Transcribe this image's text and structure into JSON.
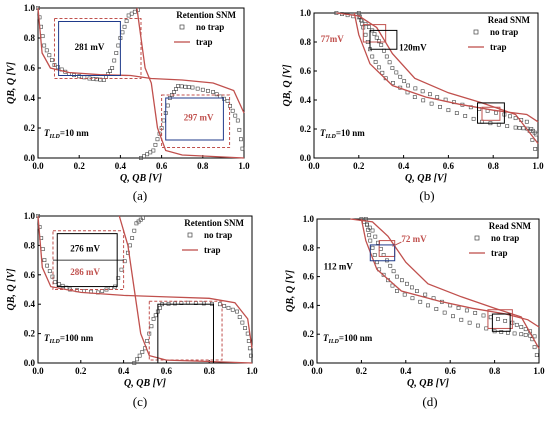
{
  "colors": {
    "trap": "#c0504d",
    "no_trap": "#000000",
    "box_trap": "#c0504d",
    "box_notrap": "#1f3a8a"
  },
  "chart_data": [
    {
      "type": "line",
      "panel": "(a)",
      "title": "Retention SNM",
      "xlabel": "Q, QB [V]",
      "ylabel": "QB, Q [V]",
      "xlim": [
        0,
        1.0
      ],
      "ylim": [
        0,
        1.0
      ],
      "xticks": [
        "0.0",
        "0.2",
        "0.4",
        "0.6",
        "0.8",
        "1.0"
      ],
      "yticks": [
        "0.0",
        "0.2",
        "0.4",
        "0.6",
        "0.8",
        "1.0"
      ],
      "legend": [
        "no trap",
        "trap"
      ],
      "condition": "=10 nm",
      "t_label_main": "T",
      "t_label_sub": "ILD",
      "snm_labels": [
        {
          "text": "281 mV",
          "color": "no_trap"
        },
        {
          "text": "297 mV",
          "color": "trap"
        }
      ],
      "series": [
        {
          "name": "no trap",
          "marker": "square",
          "curve1": [
            [
              0,
              1.0
            ],
            [
              0.03,
              0.75
            ],
            [
              0.08,
              0.62
            ],
            [
              0.15,
              0.56
            ],
            [
              0.25,
              0.53
            ],
            [
              0.32,
              0.52
            ],
            [
              0.36,
              0.6
            ],
            [
              0.4,
              0.8
            ],
            [
              0.44,
              0.95
            ],
            [
              0.5,
              1.0
            ]
          ],
          "curve2": [
            [
              0.5,
              0
            ],
            [
              0.56,
              0.05
            ],
            [
              0.6,
              0.2
            ],
            [
              0.64,
              0.4
            ],
            [
              0.68,
              0.48
            ],
            [
              0.75,
              0.47
            ],
            [
              0.85,
              0.44
            ],
            [
              0.92,
              0.38
            ],
            [
              0.97,
              0.25
            ],
            [
              1.0,
              0
            ]
          ]
        },
        {
          "name": "trap",
          "marker": "line",
          "curve1": [
            [
              0,
              1.0
            ],
            [
              0.02,
              0.7
            ],
            [
              0.06,
              0.6
            ],
            [
              0.15,
              0.57
            ],
            [
              0.3,
              0.555
            ],
            [
              0.45,
              0.55
            ],
            [
              0.5,
              0.54
            ],
            [
              0.55,
              0.53
            ],
            [
              0.7,
              0.52
            ],
            [
              0.85,
              0.5
            ],
            [
              0.95,
              0.45
            ],
            [
              1.0,
              0.3
            ]
          ],
          "curve2": [
            [
              0.48,
              1.0
            ],
            [
              0.5,
              0.8
            ],
            [
              0.52,
              0.6
            ],
            [
              0.55,
              0.5
            ],
            [
              0.58,
              0.2
            ],
            [
              0.62,
              0.05
            ],
            [
              0.7,
              0.02
            ],
            [
              0.85,
              0.01
            ],
            [
              1.0,
              0
            ]
          ]
        }
      ]
    },
    {
      "type": "line",
      "panel": "(b)",
      "title": "Read SNM",
      "xlabel": "Q, QB [V]",
      "ylabel": "QB, Q [V]",
      "xlim": [
        0,
        1.0
      ],
      "ylim": [
        0,
        1.0
      ],
      "xticks": [
        "0.0",
        "0.2",
        "0.4",
        "0.6",
        "0.8",
        "1.0"
      ],
      "yticks": [
        "0.0",
        "0.2",
        "0.4",
        "0.6",
        "0.8",
        "1.0"
      ],
      "legend": [
        "no trap",
        "trap"
      ],
      "condition": "=10 nm",
      "t_label_main": "T",
      "t_label_sub": "ILD",
      "snm_labels": [
        {
          "text": "77mV",
          "color": "trap"
        },
        {
          "text": "120mV",
          "color": "no_trap"
        }
      ],
      "series": [
        {
          "name": "no trap",
          "marker": "square",
          "curve1": [
            [
              0.1,
              1.0
            ],
            [
              0.2,
              0.97
            ],
            [
              0.26,
              0.88
            ],
            [
              0.3,
              0.78
            ],
            [
              0.35,
              0.62
            ],
            [
              0.42,
              0.5
            ],
            [
              0.55,
              0.42
            ],
            [
              0.7,
              0.35
            ],
            [
              0.85,
              0.3
            ],
            [
              0.95,
              0.25
            ],
            [
              1.0,
              0
            ]
          ],
          "curve2": [
            [
              0.2,
              1.0
            ],
            [
              0.22,
              0.9
            ],
            [
              0.26,
              0.7
            ],
            [
              0.32,
              0.55
            ],
            [
              0.45,
              0.42
            ],
            [
              0.6,
              0.33
            ],
            [
              0.75,
              0.25
            ],
            [
              0.9,
              0.21
            ],
            [
              0.97,
              0.2
            ],
            [
              1.0,
              0.15
            ]
          ]
        },
        {
          "name": "trap",
          "marker": "line",
          "curve1": [
            [
              0.1,
              1.0
            ],
            [
              0.2,
              0.98
            ],
            [
              0.28,
              0.9
            ],
            [
              0.35,
              0.72
            ],
            [
              0.45,
              0.55
            ],
            [
              0.6,
              0.45
            ],
            [
              0.75,
              0.38
            ],
            [
              0.9,
              0.3
            ],
            [
              1.0,
              0.1
            ]
          ],
          "curve2": [
            [
              0.18,
              1.0
            ],
            [
              0.2,
              0.85
            ],
            [
              0.25,
              0.65
            ],
            [
              0.35,
              0.5
            ],
            [
              0.5,
              0.42
            ],
            [
              0.65,
              0.37
            ],
            [
              0.8,
              0.33
            ],
            [
              0.95,
              0.3
            ],
            [
              1.0,
              0.25
            ]
          ]
        }
      ]
    },
    {
      "type": "line",
      "panel": "(c)",
      "title": "Retention SNM",
      "xlabel": "Q, QB [V]",
      "ylabel": "QB, Q [V]",
      "xlim": [
        0,
        1.0
      ],
      "ylim": [
        0,
        1.0
      ],
      "xticks": [
        "0.0",
        "0.2",
        "0.4",
        "0.6",
        "0.8",
        "1.0"
      ],
      "yticks": [
        "0.0",
        "0.2",
        "0.4",
        "0.6",
        "0.8",
        "1.0"
      ],
      "legend": [
        "no trap",
        "trap"
      ],
      "condition": "=100 nm",
      "t_label_main": "T",
      "t_label_sub": "ILD",
      "snm_labels": [
        {
          "text": "276 mV",
          "color": "no_trap"
        },
        {
          "text": "286 mV",
          "color": "trap"
        }
      ],
      "series": [
        {
          "name": "no trap",
          "marker": "square",
          "curve1": [
            [
              0,
              1.0
            ],
            [
              0.03,
              0.7
            ],
            [
              0.08,
              0.55
            ],
            [
              0.15,
              0.5
            ],
            [
              0.28,
              0.48
            ],
            [
              0.36,
              0.52
            ],
            [
              0.42,
              0.75
            ],
            [
              0.46,
              0.95
            ],
            [
              0.5,
              1.0
            ]
          ],
          "curve2": [
            [
              0.45,
              0
            ],
            [
              0.5,
              0.1
            ],
            [
              0.54,
              0.3
            ],
            [
              0.58,
              0.4
            ],
            [
              0.7,
              0.41
            ],
            [
              0.85,
              0.4
            ],
            [
              0.93,
              0.35
            ],
            [
              0.98,
              0.2
            ],
            [
              1.0,
              0
            ]
          ]
        },
        {
          "name": "trap",
          "marker": "line",
          "curve1": [
            [
              0,
              1.0
            ],
            [
              0.02,
              0.65
            ],
            [
              0.06,
              0.52
            ],
            [
              0.2,
              0.48
            ],
            [
              0.4,
              0.46
            ],
            [
              0.6,
              0.45
            ],
            [
              0.8,
              0.44
            ],
            [
              0.92,
              0.41
            ],
            [
              0.98,
              0.3
            ],
            [
              1.0,
              0.1
            ]
          ],
          "curve2": [
            [
              0.38,
              1.0
            ],
            [
              0.42,
              0.8
            ],
            [
              0.45,
              0.5
            ],
            [
              0.48,
              0.2
            ],
            [
              0.52,
              0.05
            ],
            [
              0.6,
              0.02
            ],
            [
              0.8,
              0.01
            ],
            [
              1.0,
              0
            ]
          ]
        }
      ]
    },
    {
      "type": "line",
      "panel": "(d)",
      "title": "Read SNM",
      "xlabel": "Q, QB [V]",
      "ylabel": "QB, Q [V]",
      "xlim": [
        0,
        1.0
      ],
      "ylim": [
        0,
        1.0
      ],
      "xticks": [
        "0.0",
        "0.2",
        "0.4",
        "0.6",
        "0.8",
        "1.0"
      ],
      "yticks": [
        "0.0",
        "0.2",
        "0.4",
        "0.6",
        "0.8",
        "1.0"
      ],
      "legend": [
        "no trap",
        "trap"
      ],
      "condition": "=100 nm",
      "t_label_main": "T",
      "t_label_sub": "ILD",
      "snm_labels": [
        {
          "text": "72 mV",
          "color": "trap"
        },
        {
          "text": "112 mV",
          "color": "no_trap"
        }
      ],
      "series": [
        {
          "name": "no trap",
          "marker": "square",
          "curve1": [
            [
              0.2,
              1.0
            ],
            [
              0.25,
              0.92
            ],
            [
              0.3,
              0.75
            ],
            [
              0.36,
              0.6
            ],
            [
              0.45,
              0.5
            ],
            [
              0.6,
              0.4
            ],
            [
              0.75,
              0.33
            ],
            [
              0.88,
              0.28
            ],
            [
              0.96,
              0.22
            ],
            [
              1.0,
              0
            ]
          ],
          "curve2": [
            [
              0.22,
              1.0
            ],
            [
              0.24,
              0.85
            ],
            [
              0.28,
              0.65
            ],
            [
              0.36,
              0.5
            ],
            [
              0.5,
              0.4
            ],
            [
              0.65,
              0.3
            ],
            [
              0.8,
              0.22
            ],
            [
              0.92,
              0.2
            ],
            [
              1.0,
              0.18
            ]
          ]
        },
        {
          "name": "trap",
          "marker": "line",
          "curve1": [
            [
              0.15,
              1.0
            ],
            [
              0.25,
              0.98
            ],
            [
              0.32,
              0.88
            ],
            [
              0.4,
              0.7
            ],
            [
              0.5,
              0.55
            ],
            [
              0.65,
              0.46
            ],
            [
              0.8,
              0.38
            ],
            [
              0.92,
              0.32
            ],
            [
              1.0,
              0.1
            ]
          ],
          "curve2": [
            [
              0.2,
              1.0
            ],
            [
              0.22,
              0.85
            ],
            [
              0.27,
              0.65
            ],
            [
              0.38,
              0.5
            ],
            [
              0.55,
              0.43
            ],
            [
              0.7,
              0.38
            ],
            [
              0.85,
              0.34
            ],
            [
              0.95,
              0.3
            ],
            [
              1.0,
              0.25
            ]
          ]
        }
      ]
    }
  ]
}
